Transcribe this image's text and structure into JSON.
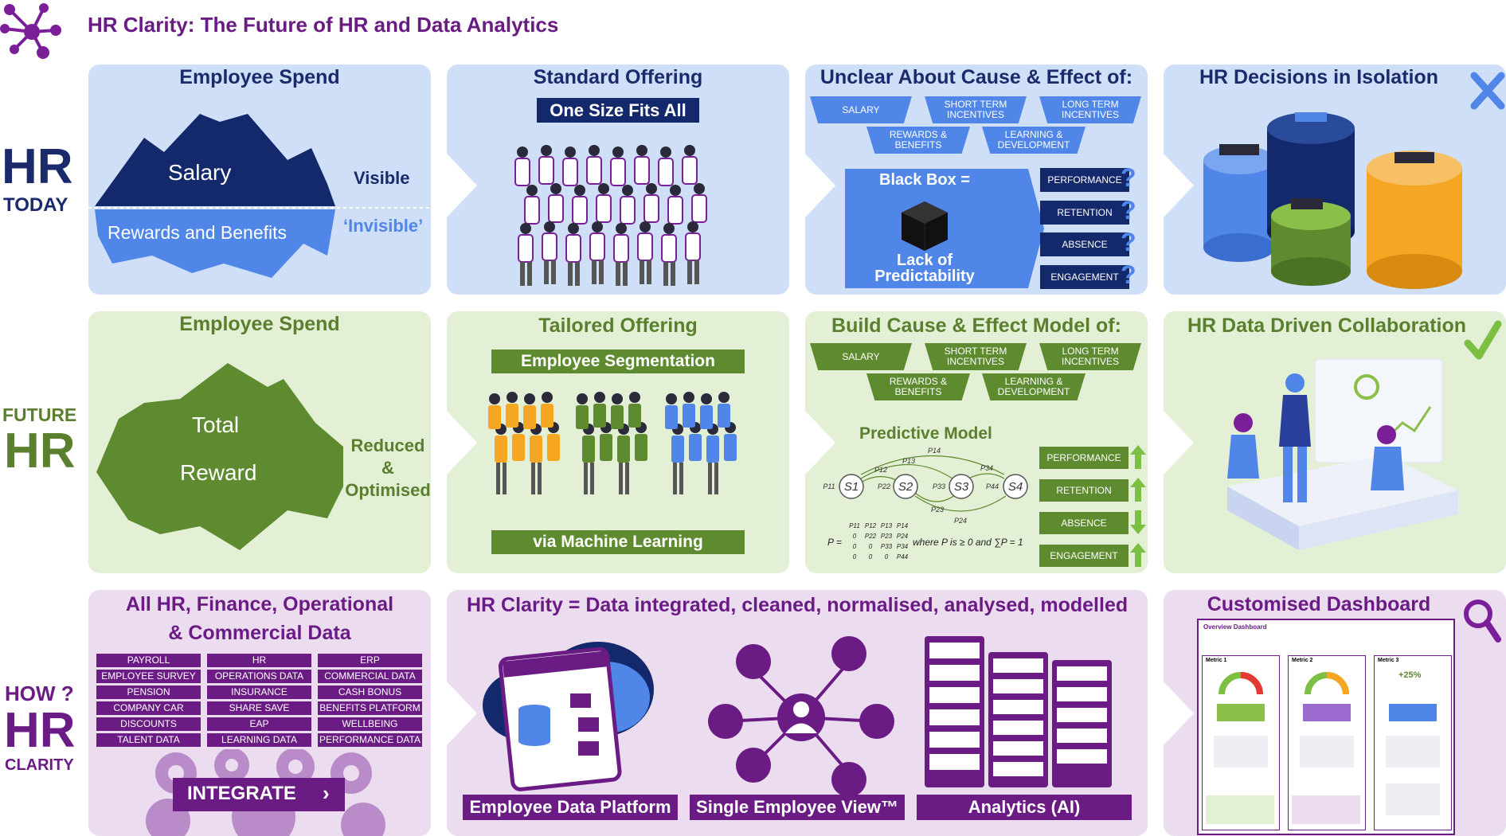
{
  "header": {
    "title": "HR Clarity: The Future of HR and Data Analytics"
  },
  "rows": {
    "today": {
      "line1": "HR",
      "line2": "TODAY"
    },
    "future": {
      "line1": "FUTURE",
      "line2": "HR"
    },
    "how": {
      "line1": "HOW ?",
      "line2": "HR",
      "line3": "CLARITY"
    }
  },
  "today": {
    "spend": {
      "title": "Employee Spend",
      "salary": "Salary",
      "visible": "Visible",
      "rewards": "Rewards and Benefits",
      "invisible": "‘Invisible’"
    },
    "standard": {
      "title": "Standard Offering",
      "subtitle": "One Size Fits All"
    },
    "cause": {
      "title": "Unclear About Cause & Effect of:",
      "inputs": [
        "SALARY",
        "SHORT TERM INCENTIVES",
        "LONG TERM INCENTIVES",
        "REWARDS & BENEFITS",
        "LEARNING & DEVELOPMENT"
      ],
      "blackbox": "Black Box =",
      "lack": "Lack of Predictability",
      "outputs": [
        "PERFORMANCE",
        "RETENTION",
        "ABSENCE",
        "ENGAGEMENT"
      ],
      "qmark": "?"
    },
    "isolation": {
      "title": "HR Decisions in Isolation"
    }
  },
  "future": {
    "spend": {
      "title": "Employee Spend",
      "total": "Total",
      "reward": "Reward",
      "reduced": "Reduced",
      "amp": "&",
      "optimised": "Optimised"
    },
    "tailored": {
      "title": "Tailored Offering",
      "seg": "Employee Segmentation",
      "ml": "via Machine Learning"
    },
    "model": {
      "title": "Build Cause & Effect Model of:",
      "inputs": [
        "SALARY",
        "SHORT TERM INCENTIVES",
        "LONG TERM INCENTIVES",
        "REWARDS & BENEFITS",
        "LEARNING & DEVELOPMENT"
      ],
      "predictive": "Predictive Model",
      "states": [
        "S1",
        "S2",
        "S3",
        "S4"
      ],
      "loops": [
        "P11",
        "P22",
        "P33",
        "P44"
      ],
      "arcs": [
        "P12",
        "P13",
        "P14",
        "P23",
        "P24",
        "P34"
      ],
      "matrix_label": "P =",
      "matrix_rows": [
        [
          "P11",
          "P12",
          "P13",
          "P14"
        ],
        [
          "0",
          "P22",
          "P23",
          "P24"
        ],
        [
          "0",
          "0",
          "P33",
          "P34"
        ],
        [
          "0",
          "0",
          "0",
          "P44"
        ]
      ],
      "condition": "where P is ≥ 0 and ∑P = 1",
      "outputs": [
        "PERFORMANCE",
        "RETENTION",
        "ABSENCE",
        "ENGAGEMENT"
      ]
    },
    "collab": {
      "title": "HR Data Driven Collaboration"
    }
  },
  "how": {
    "data": {
      "title1": "All HR, Finance, Operational",
      "title2": "& Commercial Data",
      "cells": [
        "PAYROLL",
        "HR",
        "ERP",
        "EMPLOYEE SURVEY",
        "OPERATIONS DATA",
        "COMMERCIAL DATA",
        "PENSION",
        "INSURANCE",
        "CASH BONUS",
        "COMPANY CAR",
        "SHARE SAVE",
        "BENEFITS PLATFORM",
        "DISCOUNTS",
        "EAP",
        "WELLBEING",
        "TALENT DATA",
        "LEARNING DATA",
        "PERFORMANCE DATA"
      ],
      "integrate": "INTEGRATE"
    },
    "clarity": {
      "title": "HR Clarity = Data integrated, cleaned, normalised, analysed, modelled",
      "labels": [
        "Employee Data Platform",
        "Single Employee View™",
        "Analytics (AI)"
      ]
    },
    "dashboard": {
      "title": "Customised Dashboard",
      "header": "Overview Dashboard",
      "metrics": [
        "Metric 1",
        "Metric 2",
        "Metric 3"
      ],
      "pct": "+25%"
    }
  },
  "colors": {
    "purple": "#6a1b84",
    "navy": "#1b2a6b",
    "green": "#5e8b2f",
    "blue": "#4f86e8"
  }
}
